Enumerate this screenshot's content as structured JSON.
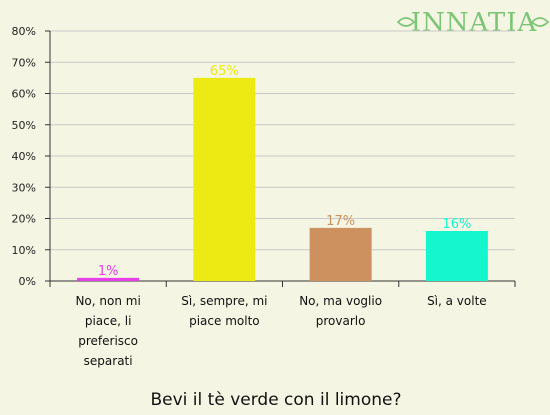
{
  "logo": {
    "text": "INNATIA",
    "color": "#7cc576"
  },
  "chart_data": {
    "type": "bar",
    "title": "Bevi il tè verde con il limone?",
    "categories": [
      [
        "No, non mi",
        "piace, li",
        "preferisco",
        "separati"
      ],
      [
        "Sì, sempre, mi",
        "piace molto"
      ],
      [
        "No, ma voglio",
        "provarlo"
      ],
      [
        "Sì, a volte"
      ]
    ],
    "values": [
      1,
      65,
      17,
      16
    ],
    "value_labels": [
      "1%",
      "65%",
      "17%",
      "16%"
    ],
    "colors": [
      "#e83ee8",
      "#ecea12",
      "#cd9160",
      "#15f5ce"
    ],
    "yticks": [
      "0%",
      "10%",
      "20%",
      "30%",
      "40%",
      "50%",
      "60%",
      "70%",
      "80%"
    ],
    "ylim": [
      0,
      80
    ],
    "grid": true,
    "grid_color": "#c9c9c9"
  }
}
